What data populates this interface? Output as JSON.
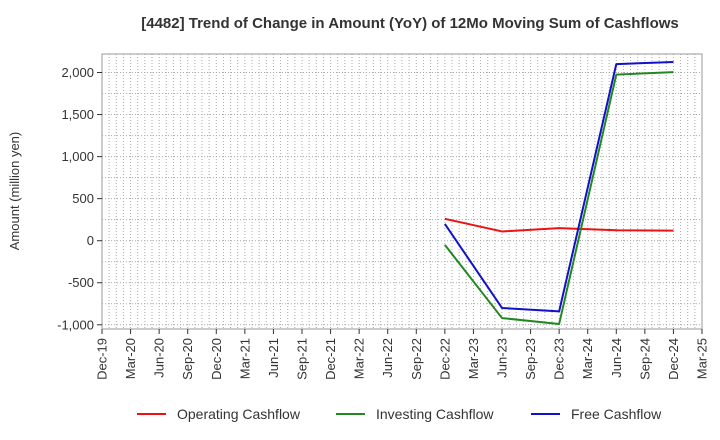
{
  "chart_data": {
    "type": "line",
    "title": "[4482]  Trend of Change in Amount (YoY) of 12Mo Moving Sum of Cashflows",
    "xlabel": "",
    "ylabel": "Amount (million yen)",
    "ylim": [
      -1050,
      2220
    ],
    "yticks": [
      -1000,
      -500,
      0,
      500,
      1000,
      1500,
      2000
    ],
    "ytick_labels": [
      "-1,000",
      "-500",
      "0",
      "500",
      "1,000",
      "1,500",
      "2,000"
    ],
    "categories": [
      "Dec-19",
      "Mar-20",
      "Jun-20",
      "Sep-20",
      "Dec-20",
      "Mar-21",
      "Jun-21",
      "Sep-21",
      "Dec-21",
      "Mar-22",
      "Jun-22",
      "Sep-22",
      "Dec-22",
      "Mar-23",
      "Jun-23",
      "Sep-23",
      "Dec-23",
      "Mar-24",
      "Jun-24",
      "Sep-24",
      "Dec-24",
      "Mar-25"
    ],
    "grid": true,
    "legend_position": "bottom",
    "series": [
      {
        "name": "Operating Cashflow",
        "color": "#ee1111",
        "values": [
          null,
          null,
          null,
          null,
          null,
          null,
          null,
          null,
          null,
          null,
          null,
          null,
          260,
          null,
          110,
          null,
          150,
          null,
          125,
          null,
          120,
          null
        ]
      },
      {
        "name": "Investing Cashflow",
        "color": "#228822",
        "values": [
          null,
          null,
          null,
          null,
          null,
          null,
          null,
          null,
          null,
          null,
          null,
          null,
          -50,
          null,
          -920,
          null,
          -990,
          null,
          1975,
          null,
          2005,
          null
        ]
      },
      {
        "name": "Free Cashflow",
        "color": "#1111cc",
        "values": [
          null,
          null,
          null,
          null,
          null,
          null,
          null,
          null,
          null,
          null,
          null,
          null,
          200,
          null,
          -800,
          null,
          -840,
          null,
          2100,
          null,
          2125,
          null
        ]
      }
    ]
  }
}
